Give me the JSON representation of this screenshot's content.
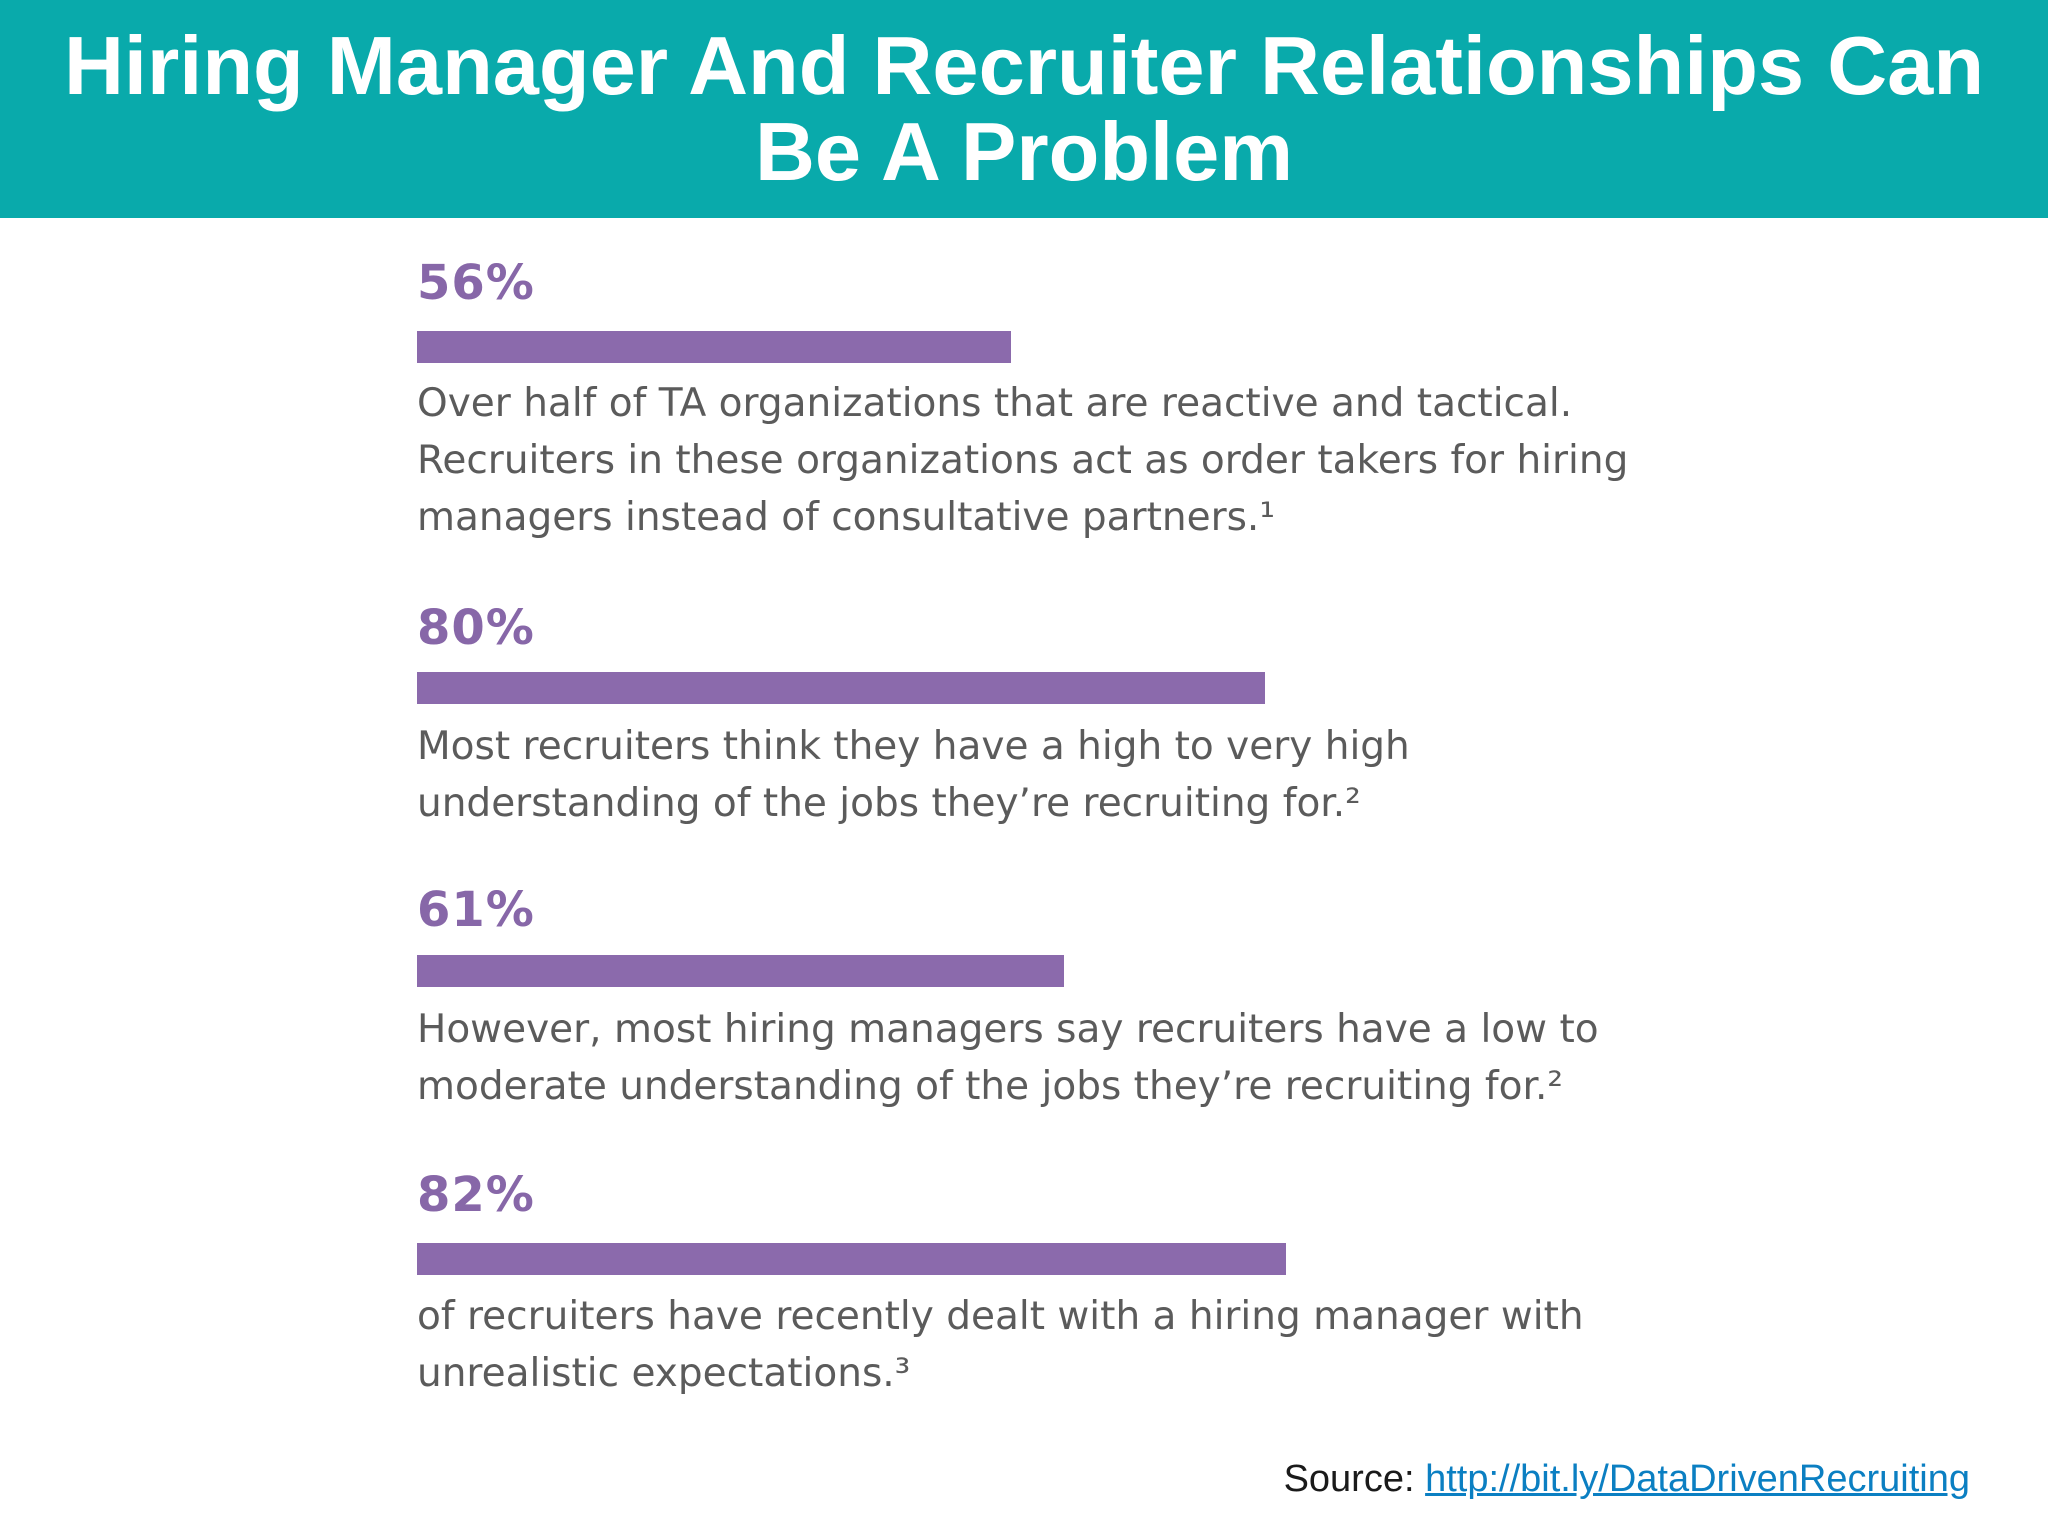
{
  "title": "Hiring Manager And Recruiter Relationships Can Be A Problem",
  "chart_data": {
    "type": "bar",
    "orientation": "horizontal",
    "title": "",
    "series": [
      {
        "name": "",
        "values": [
          56,
          80,
          61,
          82
        ]
      }
    ],
    "items": [
      {
        "value": 56,
        "label": "56%",
        "description": "Over half of TA organizations that are reactive and tactical. Recruiters in these organizations act as order takers for hiring managers instead of consultative partners.¹"
      },
      {
        "value": 80,
        "label": "80%",
        "description": "Most recruiters think they have a high to very high understanding of the jobs they’re recruiting for.²"
      },
      {
        "value": 61,
        "label": "61%",
        "description": "However, most hiring managers say recruiters have a low to moderate understanding of the jobs they’re recruiting for.²"
      },
      {
        "value": 82,
        "label": "82%",
        "description": "of recruiters have recently dealt with a hiring manager with unrealistic expectations.³"
      }
    ],
    "bar_color": "#8b6aac",
    "grid": false
  },
  "source": {
    "prefix": "Source: ",
    "link_text": "http://bit.ly/DataDrivenRecruiting"
  },
  "colors": {
    "header_bg": "#09aaab",
    "header_text": "#ffffff",
    "value_text": "#8767a8",
    "body_text": "#5b5b5b",
    "link": "#0b7fc2"
  }
}
